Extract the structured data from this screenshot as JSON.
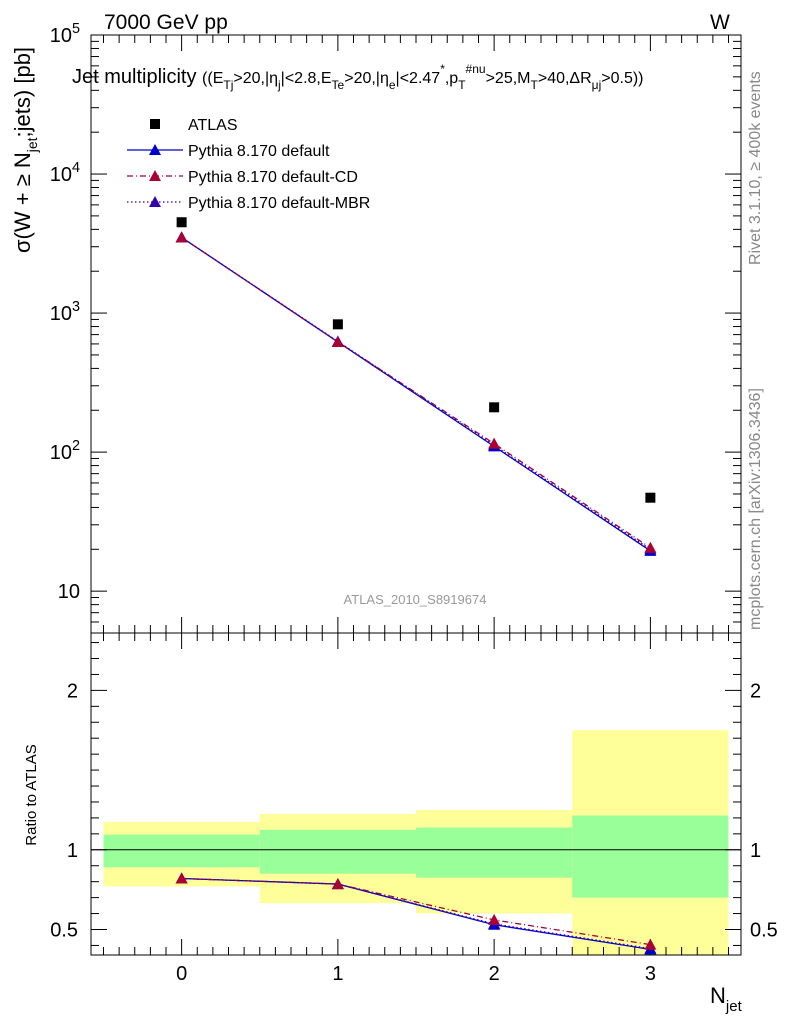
{
  "header": {
    "left": "7000 GeV pp",
    "right": "W"
  },
  "title": {
    "main": "Jet multiplicity",
    "cuts": "((E_Tj>20,|η_j|<2.8,E_Te>20,|η_e|<2.47^*,p_T^#nu>25,M_T>40,ΔR_μj>0.5))"
  },
  "side_labels": {
    "rivet": "Rivet 3.1.10, ≥ 400k events",
    "mcplots": "mcplots.cern.ch [arXiv:1306.3436]"
  },
  "analysis_id": "ATLAS_2010_S8919674",
  "colors": {
    "atlas": "#000000",
    "default": "#0000cc",
    "cd": "#aa0033",
    "mbr": "#3300aa",
    "band_outer": "#ffff99",
    "band_inner": "#99ff99"
  },
  "chart_data": [
    {
      "type": "scatter",
      "panel": "main",
      "title": "Jet multiplicity",
      "xlabel": "N_jet",
      "ylabel": "σ(W + ≥ N_jet;jets) [pb]",
      "yscale": "log",
      "xlim": [
        -0.58,
        3.58
      ],
      "ylim": [
        5,
        100000
      ],
      "x_ticks": [
        "0",
        "1",
        "2",
        "3"
      ],
      "y_ticks": [
        "10",
        "10^2",
        "10^3",
        "10^4",
        "10^5"
      ],
      "legend_position": "top-left",
      "x": [
        0,
        1,
        2,
        3
      ],
      "series": [
        {
          "name": "ATLAS",
          "marker": "square",
          "values": [
            4500,
            830,
            210,
            47
          ]
        },
        {
          "name": "Pythia 8.170 default",
          "marker": "triangle",
          "line": "solid",
          "values": [
            3500,
            620,
            110,
            19.5
          ]
        },
        {
          "name": "Pythia 8.170 default-CD",
          "marker": "triangle",
          "line": "dashdot",
          "values": [
            3500,
            620,
            115,
            20.5
          ]
        },
        {
          "name": "Pythia 8.170 default-MBR",
          "marker": "triangle",
          "line": "dotted",
          "values": [
            3500,
            625,
            112,
            20
          ]
        }
      ]
    },
    {
      "type": "line",
      "panel": "ratio",
      "ylabel": "Ratio to ATLAS",
      "xlabel": "N_jet",
      "xlim": [
        -0.58,
        3.58
      ],
      "ylim": [
        0.34,
        2.36
      ],
      "x_ticks": [
        "0",
        "1",
        "2",
        "3"
      ],
      "y_ticks": [
        "0.5",
        "1",
        "2"
      ],
      "reference": 1,
      "x": [
        0,
        1,
        2,
        3
      ],
      "bands": {
        "outer": [
          [
            0.77,
            1.175
          ],
          [
            0.665,
            1.225
          ],
          [
            0.6,
            1.25
          ],
          [
            0.34,
            1.75
          ]
        ],
        "inner": [
          [
            0.89,
            1.095
          ],
          [
            0.85,
            1.125
          ],
          [
            0.825,
            1.14
          ],
          [
            0.7,
            1.215
          ]
        ]
      },
      "series": [
        {
          "name": "Pythia 8.170 default",
          "values": [
            0.82,
            0.785,
            0.53,
            0.375
          ]
        },
        {
          "name": "Pythia 8.170 default-CD",
          "values": [
            0.82,
            0.785,
            0.56,
            0.405
          ]
        },
        {
          "name": "Pythia 8.170 default-MBR",
          "values": [
            0.82,
            0.785,
            0.535,
            0.38
          ]
        }
      ]
    }
  ]
}
